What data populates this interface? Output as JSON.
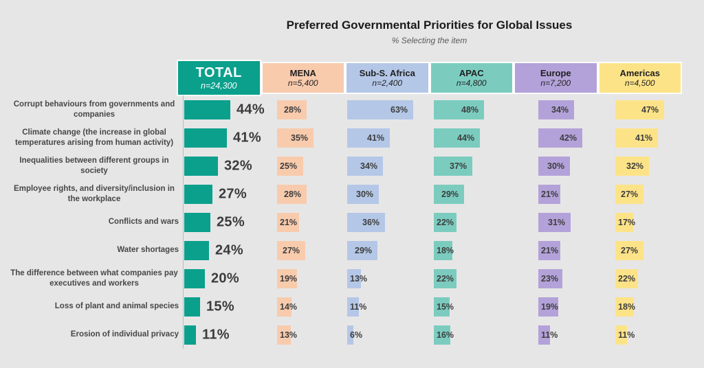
{
  "chart_data": {
    "type": "bar",
    "orientation": "horizontal",
    "title": "Preferred Governmental Priorities for Global Issues",
    "subtitle": "% Selecting the item",
    "unit": "percent",
    "value_format": "{v}%",
    "background_color": "#e7e6e6",
    "categories": [
      "Corrupt behaviours from governments and companies",
      "Climate change (the increase in global temperatures arising from human activity)",
      "Inequalities between different groups in society",
      "Employee rights, and diversity/inclusion in the workplace",
      "Conflicts and wars",
      "Water shortages",
      "The difference between what companies pay executives and workers",
      "Loss of plant and animal species",
      "Erosion of individual privacy"
    ],
    "series": [
      {
        "name": "TOTAL",
        "n": "n=24,300",
        "color": "#0aa08c",
        "text_color": "#ffffff",
        "values": [
          44,
          41,
          32,
          27,
          25,
          24,
          20,
          15,
          11
        ]
      },
      {
        "name": "MENA",
        "n": "n=5,400",
        "color": "#f8cbad",
        "text_color": "#1f1f1f",
        "values": [
          28,
          35,
          25,
          28,
          21,
          27,
          19,
          14,
          13
        ]
      },
      {
        "name": "Sub-S. Africa",
        "n": "n=2,400",
        "color": "#b4c7e7",
        "text_color": "#1f1f1f",
        "values": [
          63,
          41,
          34,
          30,
          36,
          29,
          13,
          11,
          6
        ]
      },
      {
        "name": "APAC",
        "n": "n=4,800",
        "color": "#7bccbf",
        "text_color": "#1f1f1f",
        "values": [
          48,
          44,
          37,
          29,
          22,
          18,
          22,
          15,
          16
        ]
      },
      {
        "name": "Europe",
        "n": "n=7,200",
        "color": "#b3a2d9",
        "text_color": "#1f1f1f",
        "values": [
          34,
          42,
          30,
          21,
          31,
          21,
          23,
          19,
          11
        ]
      },
      {
        "name": "Americas",
        "n": "n=4,500",
        "color": "#fde388",
        "text_color": "#1f1f1f",
        "values": [
          47,
          41,
          32,
          27,
          17,
          27,
          22,
          18,
          11
        ]
      }
    ],
    "legend_position": "column-headers-top",
    "grid": false,
    "xlim": [
      0,
      70
    ]
  }
}
